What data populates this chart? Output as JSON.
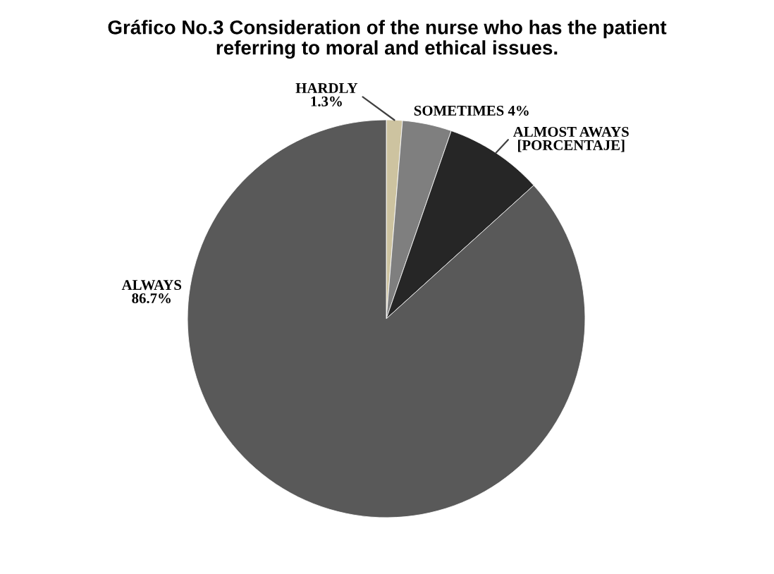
{
  "chart_data": {
    "type": "pie",
    "title": "Gráfico No.3 Consideration of the nurse who has the patient referring to moral and ethical issues.",
    "categories": [
      "HARDLY",
      "SOMETIMES",
      "ALMOST AWAYS",
      "ALWAYS"
    ],
    "values": [
      1.3,
      4,
      8,
      86.7
    ],
    "colors": [
      "#cdc3a0",
      "#7f7f7f",
      "#262626",
      "#595959"
    ],
    "value_labels": [
      "1.3%",
      "4%",
      "[PORCENTAJE]",
      "86.7%"
    ]
  }
}
